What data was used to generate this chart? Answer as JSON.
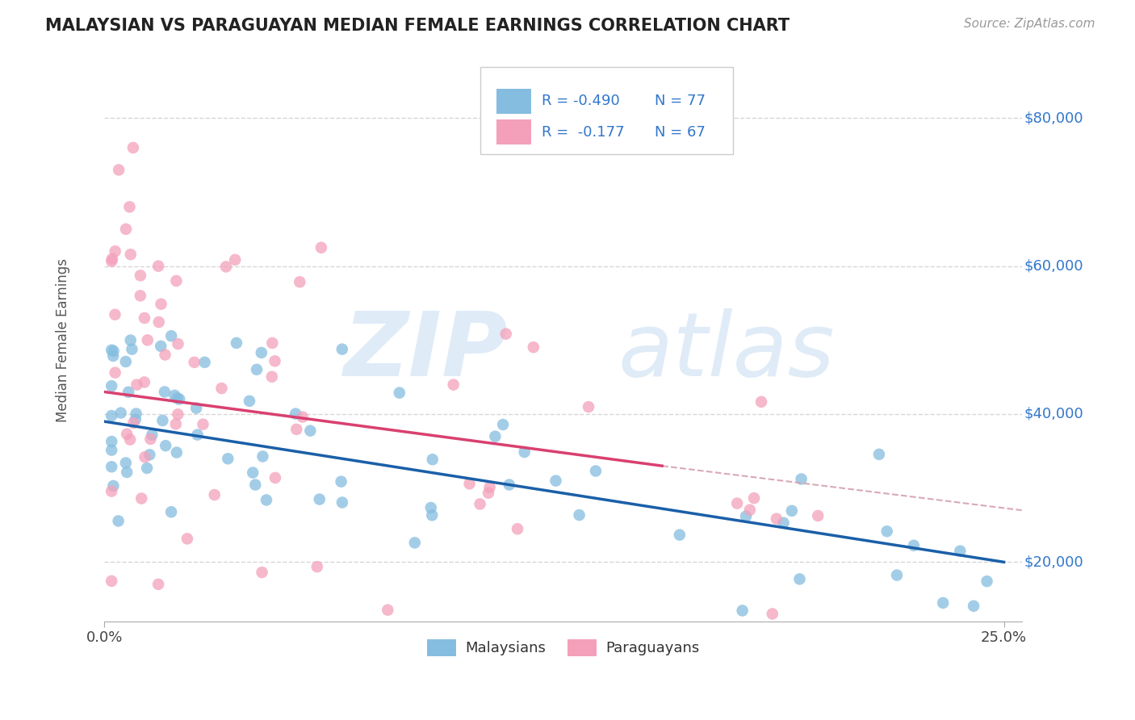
{
  "title": "MALAYSIAN VS PARAGUAYAN MEDIAN FEMALE EARNINGS CORRELATION CHART",
  "source": "Source: ZipAtlas.com",
  "ylabel": "Median Female Earnings",
  "xlim": [
    0.0,
    0.255
  ],
  "ylim": [
    12000,
    88000
  ],
  "ytick_vals": [
    20000,
    40000,
    60000,
    80000
  ],
  "ytick_labels": [
    "$20,000",
    "$40,000",
    "$60,000",
    "$80,000"
  ],
  "color_malaysian": "#85bde0",
  "color_paraguayan": "#f4a0ba",
  "color_trendline_malaysian": "#1a5fa8",
  "color_trendline_paraguayan": "#d94070",
  "color_trendline_dashed": "#d4a0b0",
  "color_grid": "#cccccc",
  "color_title": "#222222",
  "color_source": "#999999",
  "color_ytick": "#3377cc",
  "background_color": "#ffffff",
  "r1": -0.49,
  "n1": 77,
  "r2": -0.177,
  "n2": 67,
  "malaysian_trendline_x0": 0.0,
  "malaysian_trendline_y0": 39000,
  "malaysian_trendline_x1": 0.25,
  "malaysian_trendline_y1": 20000,
  "paraguayan_trendline_x0": 0.0,
  "paraguayan_trendline_y0": 43000,
  "paraguayan_trendline_x1": 0.155,
  "paraguayan_trendline_y1": 33000,
  "dashed_trendline_x0": 0.155,
  "dashed_trendline_y0": 33000,
  "dashed_trendline_x1": 0.255,
  "dashed_trendline_y1": 27000
}
